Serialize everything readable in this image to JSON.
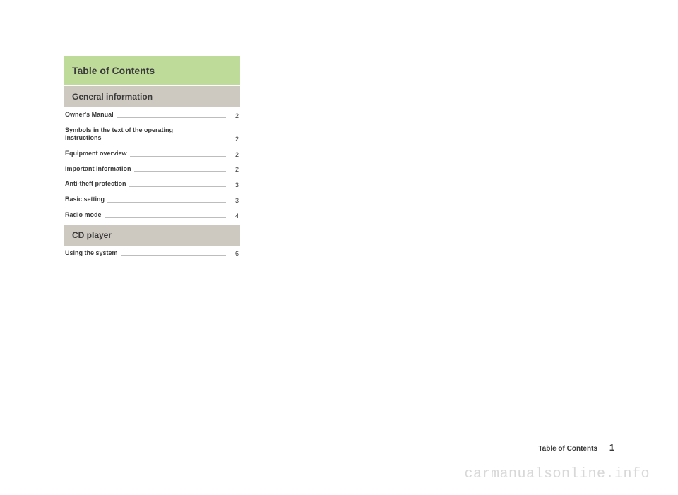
{
  "colors": {
    "title_bg": "#bedb9a",
    "section_bg": "#cdc8c0",
    "text": "#3a3a3a",
    "leader": "#bdbdbd",
    "watermark": "#d8d8d8",
    "page_bg": "#ffffff"
  },
  "title": "Table of Contents",
  "sections": [
    {
      "heading": "General information",
      "entries": [
        {
          "label": "Owner's Manual",
          "page": "2"
        },
        {
          "label": "Symbols in the text of the operating instructions",
          "page": "2"
        },
        {
          "label": "Equipment overview",
          "page": "2"
        },
        {
          "label": "Important information",
          "page": "2"
        },
        {
          "label": "Anti-theft protection",
          "page": "3"
        },
        {
          "label": "Basic setting",
          "page": "3"
        },
        {
          "label": "Radio mode",
          "page": "4"
        }
      ]
    },
    {
      "heading": "CD player",
      "entries": [
        {
          "label": "Using the system",
          "page": "6"
        }
      ]
    }
  ],
  "footer": {
    "label": "Table of Contents",
    "page": "1"
  },
  "watermark": "carmanualsonline.info"
}
